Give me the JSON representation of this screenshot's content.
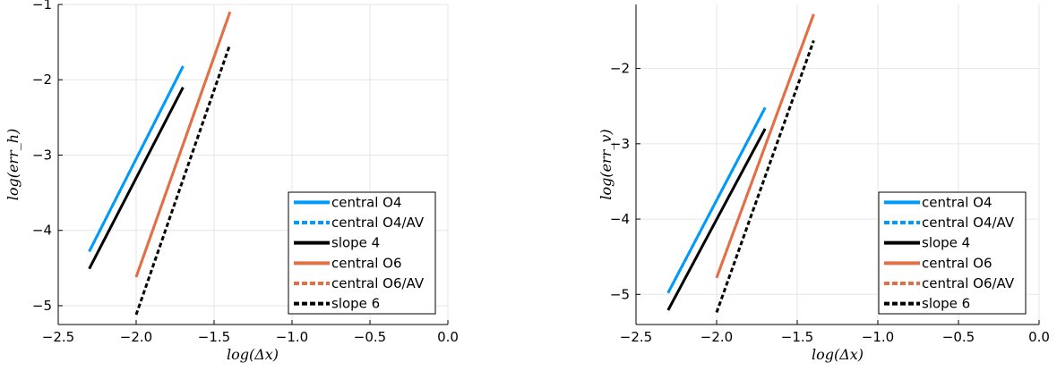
{
  "chart_data": [
    {
      "type": "line",
      "xlabel": "log(Δx)",
      "ylabel": "log(err_h)",
      "xlim": [
        -2.5,
        0.0
      ],
      "ylim": [
        -5.25,
        -1.0
      ],
      "xticks": [
        -2.5,
        -2.0,
        -1.5,
        -1.0,
        -0.5,
        0.0
      ],
      "xtick_labels": [
        "−2.5",
        "−2.0",
        "−1.5",
        "−1.0",
        "−0.5",
        "0.0"
      ],
      "yticks": [
        -5,
        -4,
        -3,
        -2,
        -1
      ],
      "ytick_labels": [
        "−5",
        "−4",
        "−3",
        "−2",
        "−1"
      ],
      "grid": true,
      "legend_position": "bottom-right",
      "series": [
        {
          "name": "central O4",
          "color": "#009af9",
          "dash": "solid",
          "x": [
            -2.301,
            -1.699
          ],
          "y": [
            -4.28,
            -1.82
          ]
        },
        {
          "name": "central O4/AV",
          "color": "#009af9",
          "dash": "dashed",
          "x": [
            -2.301,
            -1.699
          ],
          "y": [
            -4.28,
            -1.82
          ]
        },
        {
          "name": "slope 4",
          "color": "#000000",
          "dash": "solid",
          "x": [
            -2.301,
            -1.699
          ],
          "y": [
            -4.51,
            -2.1
          ]
        },
        {
          "name": "central O6",
          "color": "#e26f46",
          "dash": "solid",
          "x": [
            -2.0,
            -1.398
          ],
          "y": [
            -4.62,
            -1.1
          ]
        },
        {
          "name": "central O6/AV",
          "color": "#e26f46",
          "dash": "dashed",
          "x": [
            -2.0,
            -1.398
          ],
          "y": [
            -4.62,
            -1.1
          ]
        },
        {
          "name": "slope 6",
          "color": "#000000",
          "dash": "dashed",
          "x": [
            -2.0,
            -1.398
          ],
          "y": [
            -5.12,
            -1.53
          ]
        }
      ]
    },
    {
      "type": "line",
      "xlabel": "log(Δx)",
      "ylabel": "log(err_v)",
      "xlim": [
        -2.5,
        0.0
      ],
      "ylim": [
        -5.4,
        -1.15
      ],
      "xticks": [
        -2.5,
        -2.0,
        -1.5,
        -1.0,
        -0.5,
        0.0
      ],
      "xtick_labels": [
        "−2.5",
        "−2.0",
        "−1.5",
        "−1.0",
        "−0.5",
        "0.0"
      ],
      "yticks": [
        -5,
        -4,
        -3,
        -2
      ],
      "ytick_labels": [
        "−5",
        "−4",
        "−3",
        "−2"
      ],
      "grid": true,
      "legend_position": "bottom-right",
      "series": [
        {
          "name": "central O4",
          "color": "#009af9",
          "dash": "solid",
          "x": [
            -2.301,
            -1.699
          ],
          "y": [
            -4.98,
            -2.52
          ]
        },
        {
          "name": "central O4/AV",
          "color": "#009af9",
          "dash": "dashed",
          "x": [
            -2.301,
            -1.699
          ],
          "y": [
            -4.98,
            -2.52
          ]
        },
        {
          "name": "slope 4",
          "color": "#000000",
          "dash": "solid",
          "x": [
            -2.301,
            -1.699
          ],
          "y": [
            -5.21,
            -2.8
          ]
        },
        {
          "name": "central O6",
          "color": "#e26f46",
          "dash": "solid",
          "x": [
            -2.0,
            -1.398
          ],
          "y": [
            -4.78,
            -1.28
          ]
        },
        {
          "name": "central O6/AV",
          "color": "#e26f46",
          "dash": "dashed",
          "x": [
            -2.0,
            -1.398
          ],
          "y": [
            -4.78,
            -1.28
          ]
        },
        {
          "name": "slope 6",
          "color": "#000000",
          "dash": "dashed",
          "x": [
            -2.0,
            -1.398
          ],
          "y": [
            -5.24,
            -1.63
          ]
        }
      ]
    }
  ]
}
